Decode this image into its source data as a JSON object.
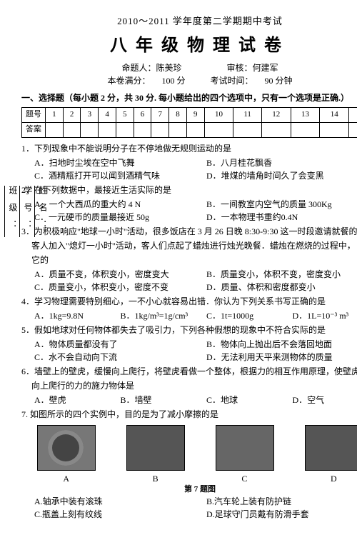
{
  "header": {
    "line1": "2010～2011 学年度第二学期期中考试",
    "line2": "八年级物理试卷",
    "author_label": "命题人：",
    "author": "陈美珍",
    "reviewer_label": "审核：",
    "reviewer": "何建军",
    "full_label": "本卷满分：",
    "full": "100 分",
    "time_label": "考试时间：",
    "time": "90 分钟"
  },
  "section1": "一、选择题（每小题 2 分，共 30 分. 每小题给出的四个选项中，只有一个选项是正确.）",
  "table": {
    "row1": "题号",
    "row2": "答案",
    "nums": [
      "1",
      "2",
      "3",
      "4",
      "5",
      "6",
      "7",
      "8",
      "9",
      "10",
      "11",
      "12",
      "13",
      "14",
      "15"
    ]
  },
  "sidebar": {
    "a": "姓名：",
    "b": "学号：",
    "c": "班级："
  },
  "q1": {
    "stem": "1．下列现象中不能说明分子在不停地做无规则运动的是",
    "A": "A．扫地时尘埃在空中飞舞",
    "B": "B．八月桂花飘香",
    "C": "C．酒精瓶打开可以闻到酒精气味",
    "D": "D．堆煤的墙角时间久了会变黑"
  },
  "q2": {
    "stem": "2．在下列数据中，最接近生活实际的是",
    "A": "A．一个大西瓜的重大约 4 N",
    "B": "B．一间教室内空气的质量 300Kg",
    "C": "C．一元硬币的质量最接近 50g",
    "D": "D．一本物理书重约0.4N"
  },
  "q3": {
    "stem1": "3．为积极响应\"地球一小时\"活动，很多饭店在 3 月 26 日晚 8:30-9:30 这一时段邀请就餐的",
    "stem2": "客人加入\"熄灯一小时\"活动，客人们点起了蜡烛进行烛光晚餐．蜡烛在燃烧的过程中，",
    "stem3": "它的",
    "A": "A．质量不变，体积变小，密度变大",
    "B": "B．质量变小，体积不变，密度变小",
    "C": "C．质量变小，体积变小，密度不变",
    "D": "D．质量、体积和密度都变小"
  },
  "q4": {
    "stem": "4．学习物理需要特别细心，一不小心就容易出错．你认为下列关系书写正确的是",
    "A": "A．1kg=9.8N",
    "B": "B．1kg/m³=1g/cm³",
    "C": "C．1t=1000g",
    "D": "D．1L=10⁻³ m³"
  },
  "q5": {
    "stem": "5．假如地球对任何物体都失去了吸引力，下列各种假想的现象中不符合实际的是",
    "A": "A．物体质量都没有了",
    "B": "B．物体向上抛出后不会落回地面",
    "C": "C．水不会自动向下流",
    "D": "D．无法利用天平来测物体的质量"
  },
  "q6": {
    "stem1": "6．墙壁上的壁虎，缓慢向上爬行，将壁虎看做一个整体，根据力的相互作用原理，使壁虎",
    "stem2": "向上爬行的力的施力物体是",
    "A": "A．壁虎",
    "B": "B．墙壁",
    "C": "C．地球",
    "D": "D．空气"
  },
  "q7": {
    "stem": "7. 如图所示的四个实例中，目的是为了减小摩擦的是",
    "caption": "第 7 题图",
    "labels": [
      "A",
      "B",
      "C",
      "D"
    ],
    "A": "A.轴承中装有滚珠",
    "B": "B.汽车轮上装有防护链",
    "C": "C.瓶盖上刻有纹线",
    "D": "D.足球守门员戴有防滑手套"
  }
}
